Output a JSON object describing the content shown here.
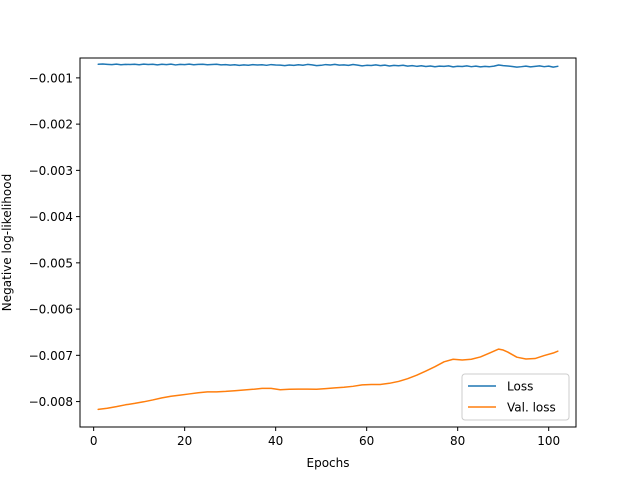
{
  "chart_data": {
    "type": "line",
    "title": "",
    "xlabel": "Epochs",
    "ylabel": "Negative log-likelihood",
    "xlim": [
      -3,
      106
    ],
    "ylim": [
      -0.00855,
      -0.00057
    ],
    "xticks": [
      0,
      20,
      40,
      60,
      80,
      100
    ],
    "xtick_labels": [
      "0",
      "20",
      "40",
      "60",
      "80",
      "100"
    ],
    "yticks": [
      -0.001,
      -0.002,
      -0.003,
      -0.004,
      -0.005,
      -0.006,
      -0.007,
      -0.008
    ],
    "ytick_labels": [
      "−0.001",
      "−0.002",
      "−0.003",
      "−0.004",
      "−0.005",
      "−0.006",
      "−0.007",
      "−0.008"
    ],
    "grid": false,
    "legend_position": "lower right",
    "series": [
      {
        "name": "Loss",
        "color": "#1f77b4",
        "x": [
          1,
          2,
          3,
          4,
          5,
          6,
          7,
          8,
          9,
          10,
          11,
          12,
          13,
          14,
          15,
          16,
          17,
          18,
          19,
          20,
          21,
          22,
          23,
          24,
          25,
          26,
          27,
          28,
          29,
          30,
          31,
          32,
          33,
          34,
          35,
          36,
          37,
          38,
          39,
          40,
          41,
          42,
          43,
          44,
          45,
          46,
          47,
          48,
          49,
          50,
          51,
          52,
          53,
          54,
          55,
          56,
          57,
          58,
          59,
          60,
          61,
          62,
          63,
          64,
          65,
          66,
          67,
          68,
          69,
          70,
          71,
          72,
          73,
          74,
          75,
          76,
          77,
          78,
          79,
          80,
          81,
          82,
          83,
          84,
          85,
          86,
          87,
          88,
          89,
          90,
          91,
          92,
          93,
          94,
          95,
          96,
          97,
          98,
          99,
          100,
          101,
          102
        ],
        "values": [
          -0.000705,
          -0.0007,
          -0.000707,
          -0.000712,
          -0.000703,
          -0.000715,
          -0.000708,
          -0.000711,
          -0.000704,
          -0.000716,
          -0.000702,
          -0.00071,
          -0.000706,
          -0.000718,
          -0.000705,
          -0.000713,
          -0.000703,
          -0.00072,
          -0.000708,
          -0.000712,
          -0.000702,
          -0.000715,
          -0.000709,
          -0.000704,
          -0.000717,
          -0.00071,
          -0.000706,
          -0.000719,
          -0.000712,
          -0.000725,
          -0.000715,
          -0.00073,
          -0.000718,
          -0.000726,
          -0.000714,
          -0.000722,
          -0.000716,
          -0.000728,
          -0.000712,
          -0.00072,
          -0.000725,
          -0.000735,
          -0.000722,
          -0.00073,
          -0.000715,
          -0.000726,
          -0.000709,
          -0.000718,
          -0.000735,
          -0.000728,
          -0.000712,
          -0.000722,
          -0.000708,
          -0.000725,
          -0.000718,
          -0.00073,
          -0.000711,
          -0.000724,
          -0.00074,
          -0.000728,
          -0.000732,
          -0.000718,
          -0.000735,
          -0.000725,
          -0.000742,
          -0.00073,
          -0.000738,
          -0.000726,
          -0.000745,
          -0.000735,
          -0.00075,
          -0.000738,
          -0.000755,
          -0.000742,
          -0.00076,
          -0.000745,
          -0.000752,
          -0.00074,
          -0.000762,
          -0.000748,
          -0.000755,
          -0.00074,
          -0.000758,
          -0.000745,
          -0.000762,
          -0.00075,
          -0.000758,
          -0.000745,
          -0.000722,
          -0.000735,
          -0.000742,
          -0.000755,
          -0.000768,
          -0.000758,
          -0.000745,
          -0.000762,
          -0.000752,
          -0.00074,
          -0.000758,
          -0.000745,
          -0.000768,
          -0.00075
        ]
      },
      {
        "name": "Val. loss",
        "color": "#ff7f0e",
        "x": [
          1,
          3,
          5,
          7,
          9,
          11,
          13,
          15,
          17,
          19,
          21,
          23,
          25,
          27,
          29,
          31,
          33,
          35,
          37,
          39,
          41,
          43,
          45,
          47,
          49,
          51,
          53,
          55,
          57,
          59,
          61,
          63,
          65,
          67,
          69,
          71,
          73,
          75,
          77,
          79,
          81,
          83,
          85,
          87,
          89,
          90,
          91,
          93,
          95,
          97,
          99,
          101,
          102
        ],
        "values": [
          -0.00817,
          -0.008145,
          -0.00811,
          -0.00807,
          -0.00804,
          -0.008005,
          -0.007965,
          -0.00792,
          -0.007885,
          -0.00786,
          -0.007835,
          -0.00781,
          -0.00779,
          -0.00779,
          -0.00778,
          -0.007765,
          -0.00775,
          -0.007735,
          -0.007715,
          -0.007715,
          -0.007745,
          -0.007735,
          -0.00773,
          -0.00773,
          -0.007735,
          -0.00772,
          -0.007705,
          -0.00769,
          -0.00767,
          -0.00764,
          -0.00763,
          -0.00763,
          -0.007605,
          -0.007565,
          -0.007505,
          -0.00743,
          -0.00734,
          -0.007245,
          -0.00714,
          -0.007085,
          -0.0071,
          -0.007085,
          -0.007035,
          -0.00695,
          -0.006865,
          -0.006885,
          -0.00693,
          -0.00704,
          -0.00708,
          -0.00707,
          -0.007005,
          -0.00695,
          -0.00691
        ]
      }
    ]
  }
}
